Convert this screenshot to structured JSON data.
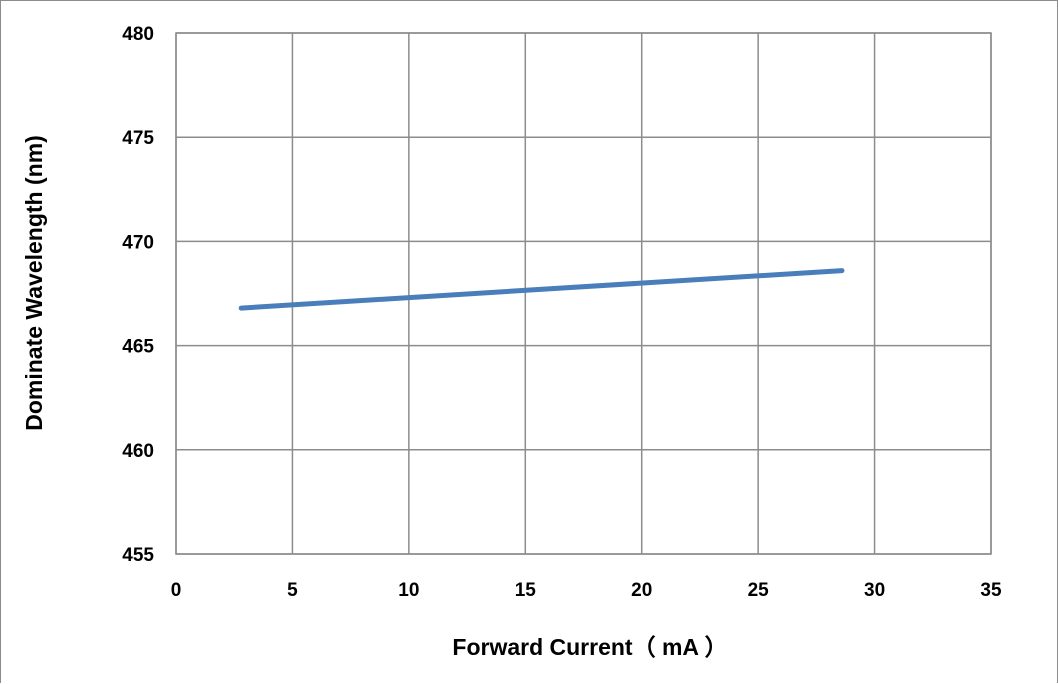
{
  "chart_data": {
    "type": "line",
    "xlabel": "Forward Current（ mA ）",
    "ylabel": "Dominate Wavelength  (nm)",
    "xlim": [
      0,
      35
    ],
    "ylim": [
      455,
      480
    ],
    "x_ticks": [
      0,
      5,
      10,
      15,
      20,
      25,
      30,
      35
    ],
    "y_ticks": [
      455,
      460,
      465,
      470,
      475,
      480
    ],
    "grid": true,
    "series": [
      {
        "color": "#4a7ebb",
        "x": [
          2.8,
          28.6
        ],
        "y": [
          466.8,
          468.6
        ]
      }
    ]
  }
}
